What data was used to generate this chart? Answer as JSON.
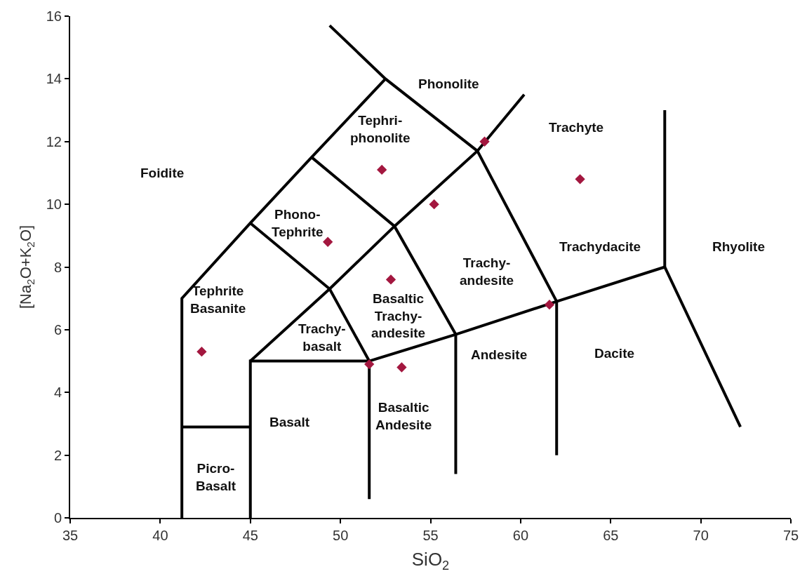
{
  "chart_data": {
    "type": "scatter",
    "xlabel": "SiO$_{2}$",
    "ylabel": "[Na$_{2}$O+K$_{2}$O]",
    "xlim": [
      35,
      75
    ],
    "xticks": [
      35,
      40,
      45,
      50,
      55,
      60,
      65,
      70,
      75
    ],
    "ylim": [
      0,
      16
    ],
    "yticks": [
      0,
      2,
      4,
      6,
      8,
      10,
      12,
      14,
      16
    ],
    "line_style": "solid",
    "series": [
      {
        "type": "line",
        "marker": "none",
        "color": "#000000",
        "x": [
          41.2,
          41.2,
          45,
          48.4,
          52.5
        ],
        "values": [
          0,
          7,
          9.4,
          11.5,
          14
        ]
      },
      {
        "type": "line",
        "marker": "none",
        "color": "#000000",
        "x": [
          49.4,
          52.5,
          57.6,
          62
        ],
        "values": [
          15.7,
          14,
          11.7,
          6.9
        ]
      },
      {
        "type": "line",
        "marker": "none",
        "color": "#000000",
        "x": [
          45,
          49.4,
          53,
          57.6,
          60.2
        ],
        "values": [
          5,
          7.3,
          9.3,
          11.7,
          13.5
        ]
      },
      {
        "type": "line",
        "marker": "none",
        "color": "#000000",
        "x": [
          45,
          49.4,
          51.6
        ],
        "values": [
          9.4,
          7.3,
          5
        ]
      },
      {
        "type": "line",
        "marker": "none",
        "color": "#000000",
        "x": [
          48.4,
          53,
          56.4
        ],
        "values": [
          11.5,
          9.3,
          5.85
        ]
      },
      {
        "type": "line",
        "marker": "none",
        "color": "#000000",
        "x": [
          45,
          45,
          51.6,
          56.4,
          62,
          68,
          72.2
        ],
        "values": [
          0,
          5,
          5,
          5.85,
          6.9,
          8,
          2.9
        ]
      },
      {
        "type": "line",
        "marker": "none",
        "color": "#000000",
        "x": [
          68,
          68
        ],
        "values": [
          8,
          13
        ]
      },
      {
        "type": "line",
        "marker": "none",
        "color": "#000000",
        "x": [
          51.6,
          51.6
        ],
        "values": [
          0.6,
          5
        ]
      },
      {
        "type": "line",
        "marker": "none",
        "color": "#000000",
        "x": [
          56.4,
          56.4
        ],
        "values": [
          1.4,
          5.85
        ]
      },
      {
        "type": "line",
        "marker": "none",
        "color": "#000000",
        "x": [
          62,
          62
        ],
        "values": [
          2,
          6.9
        ]
      },
      {
        "type": "line",
        "marker": "none",
        "color": "#000000",
        "x": [
          41.2,
          45
        ],
        "values": [
          2.9,
          2.9
        ]
      },
      {
        "marker": "diamond",
        "color": "#a3173f",
        "x": [
          42.3,
          51.6,
          53.4,
          52.8,
          49.3,
          55.2,
          52.3,
          58.0,
          63.3,
          61.6
        ],
        "values": [
          5.3,
          4.9,
          4.8,
          7.6,
          8.8,
          10.0,
          11.1,
          12.0,
          10.8,
          6.8
        ]
      }
    ],
    "annotations": [
      "Foidite",
      "Phonolite",
      "Tephri-\nphonolite",
      "Trachyte",
      "Phono-\nTephrite",
      "Trachy-\nandesite",
      "Trachydacite",
      "Rhyolite",
      "Tephrite\nBasanite",
      "Basaltic\nTrachy-\nandesite",
      "Trachy-\nbasalt",
      "Andesite",
      "Dacite",
      "Basalt",
      "Basaltic\nAndesite",
      "Picro-\nBasalt"
    ]
  }
}
